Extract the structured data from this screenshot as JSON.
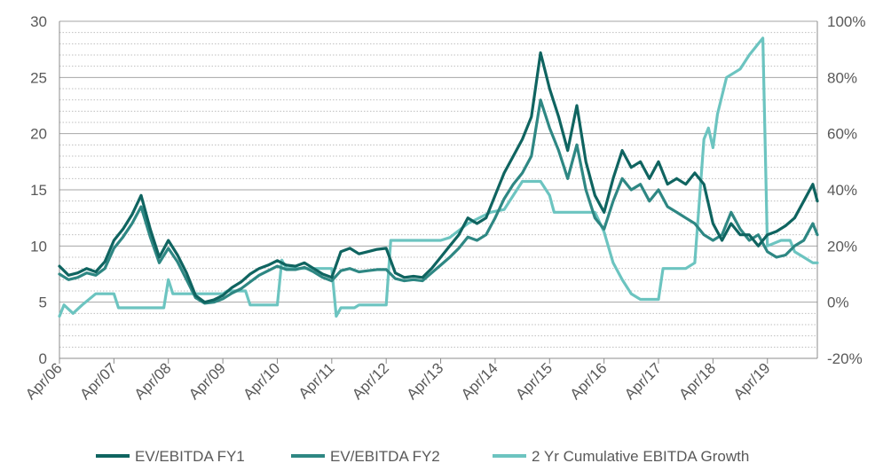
{
  "chart_data": {
    "type": "line",
    "title": "",
    "xlabel": "",
    "ylabel": "",
    "x_ticks": [
      "Apr/06",
      "Apr/07",
      "Apr/08",
      "Apr/09",
      "Apr/10",
      "Apr/11",
      "Apr/12",
      "Apr/13",
      "Apr/14",
      "Apr/15",
      "Apr/16",
      "Apr/17",
      "Apr/18",
      "Apr/19"
    ],
    "y_left": {
      "ticks": [
        "0",
        "5",
        "10",
        "15",
        "20",
        "25",
        "30"
      ],
      "range": [
        0,
        30
      ]
    },
    "y_right": {
      "ticks": [
        "-20%",
        "0%",
        "20%",
        "40%",
        "60%",
        "80%",
        "100%"
      ],
      "range": [
        -20,
        100
      ]
    },
    "grid": "horizontal dotted",
    "legend_position": "bottom",
    "series": [
      {
        "name": "EV/EBITDA FY1",
        "axis": "left",
        "color": "#0f6460",
        "points": [
          [
            "2006-04",
            8.2
          ],
          [
            "2006-06",
            7.4
          ],
          [
            "2006-08",
            7.6
          ],
          [
            "2006-10",
            8.0
          ],
          [
            "2006-12",
            7.7
          ],
          [
            "2007-02",
            8.6
          ],
          [
            "2007-04",
            10.5
          ],
          [
            "2007-06",
            11.5
          ],
          [
            "2007-08",
            12.8
          ],
          [
            "2007-10",
            14.5
          ],
          [
            "2007-12",
            11.5
          ],
          [
            "2008-02",
            9.0
          ],
          [
            "2008-04",
            10.5
          ],
          [
            "2008-06",
            9.2
          ],
          [
            "2008-08",
            7.6
          ],
          [
            "2008-10",
            5.6
          ],
          [
            "2008-12",
            5.0
          ],
          [
            "2009-02",
            5.2
          ],
          [
            "2009-04",
            5.6
          ],
          [
            "2009-06",
            6.3
          ],
          [
            "2009-08",
            6.8
          ],
          [
            "2009-10",
            7.5
          ],
          [
            "2009-12",
            8.0
          ],
          [
            "2010-02",
            8.3
          ],
          [
            "2010-04",
            8.7
          ],
          [
            "2010-06",
            8.3
          ],
          [
            "2010-08",
            8.2
          ],
          [
            "2010-10",
            8.5
          ],
          [
            "2010-12",
            8.0
          ],
          [
            "2011-02",
            7.5
          ],
          [
            "2011-04",
            7.2
          ],
          [
            "2011-06",
            9.5
          ],
          [
            "2011-08",
            9.8
          ],
          [
            "2011-10",
            9.3
          ],
          [
            "2011-12",
            9.5
          ],
          [
            "2012-02",
            9.7
          ],
          [
            "2012-04",
            9.8
          ],
          [
            "2012-06",
            7.6
          ],
          [
            "2012-08",
            7.2
          ],
          [
            "2012-10",
            7.3
          ],
          [
            "2012-12",
            7.2
          ],
          [
            "2013-02",
            8.0
          ],
          [
            "2013-04",
            9.0
          ],
          [
            "2013-06",
            10.0
          ],
          [
            "2013-08",
            11.0
          ],
          [
            "2013-10",
            12.5
          ],
          [
            "2013-12",
            12.0
          ],
          [
            "2014-02",
            12.5
          ],
          [
            "2014-04",
            14.5
          ],
          [
            "2014-06",
            16.5
          ],
          [
            "2014-08",
            18.0
          ],
          [
            "2014-10",
            19.5
          ],
          [
            "2014-12",
            21.5
          ],
          [
            "2015-02",
            27.2
          ],
          [
            "2015-04",
            24.0
          ],
          [
            "2015-06",
            21.5
          ],
          [
            "2015-08",
            18.5
          ],
          [
            "2015-10",
            22.5
          ],
          [
            "2015-12",
            17.5
          ],
          [
            "2016-02",
            14.5
          ],
          [
            "2016-04",
            13.0
          ],
          [
            "2016-06",
            16.0
          ],
          [
            "2016-08",
            18.5
          ],
          [
            "2016-10",
            17.0
          ],
          [
            "2016-12",
            17.5
          ],
          [
            "2017-02",
            16.0
          ],
          [
            "2017-04",
            17.5
          ],
          [
            "2017-06",
            15.5
          ],
          [
            "2017-08",
            16.0
          ],
          [
            "2017-10",
            15.5
          ],
          [
            "2017-12",
            16.5
          ],
          [
            "2018-02",
            15.5
          ],
          [
            "2018-04",
            12.0
          ],
          [
            "2018-06",
            10.5
          ],
          [
            "2018-08",
            12.0
          ],
          [
            "2018-10",
            11.0
          ],
          [
            "2018-12",
            11.0
          ],
          [
            "2019-02",
            10.0
          ],
          [
            "2019-04",
            11.0
          ],
          [
            "2019-06",
            11.3
          ],
          [
            "2019-08",
            11.8
          ],
          [
            "2019-10",
            12.5
          ],
          [
            "2019-12",
            14.0
          ],
          [
            "2020-02",
            15.5
          ],
          [
            "2020-03",
            14.0
          ]
        ]
      },
      {
        "name": "EV/EBITDA FY2",
        "axis": "left",
        "color": "#2e8783",
        "points": [
          [
            "2006-04",
            7.5
          ],
          [
            "2006-06",
            7.0
          ],
          [
            "2006-08",
            7.2
          ],
          [
            "2006-10",
            7.6
          ],
          [
            "2006-12",
            7.4
          ],
          [
            "2007-02",
            8.0
          ],
          [
            "2007-04",
            9.8
          ],
          [
            "2007-06",
            10.8
          ],
          [
            "2007-08",
            12.0
          ],
          [
            "2007-10",
            13.5
          ],
          [
            "2007-12",
            10.8
          ],
          [
            "2008-02",
            8.5
          ],
          [
            "2008-04",
            9.8
          ],
          [
            "2008-06",
            8.6
          ],
          [
            "2008-08",
            7.0
          ],
          [
            "2008-10",
            5.4
          ],
          [
            "2008-12",
            4.9
          ],
          [
            "2009-02",
            5.0
          ],
          [
            "2009-04",
            5.3
          ],
          [
            "2009-06",
            5.8
          ],
          [
            "2009-08",
            6.2
          ],
          [
            "2009-10",
            6.8
          ],
          [
            "2009-12",
            7.4
          ],
          [
            "2010-02",
            7.8
          ],
          [
            "2010-04",
            8.2
          ],
          [
            "2010-06",
            7.9
          ],
          [
            "2010-08",
            7.9
          ],
          [
            "2010-10",
            8.1
          ],
          [
            "2010-12",
            7.7
          ],
          [
            "2011-02",
            7.2
          ],
          [
            "2011-04",
            6.9
          ],
          [
            "2011-06",
            7.8
          ],
          [
            "2011-08",
            8.0
          ],
          [
            "2011-10",
            7.7
          ],
          [
            "2011-12",
            7.8
          ],
          [
            "2012-02",
            7.9
          ],
          [
            "2012-04",
            7.9
          ],
          [
            "2012-06",
            7.1
          ],
          [
            "2012-08",
            6.9
          ],
          [
            "2012-10",
            7.0
          ],
          [
            "2012-12",
            6.9
          ],
          [
            "2013-02",
            7.6
          ],
          [
            "2013-04",
            8.3
          ],
          [
            "2013-06",
            9.0
          ],
          [
            "2013-08",
            9.8
          ],
          [
            "2013-10",
            10.8
          ],
          [
            "2013-12",
            10.5
          ],
          [
            "2014-02",
            11.0
          ],
          [
            "2014-04",
            12.5
          ],
          [
            "2014-06",
            14.2
          ],
          [
            "2014-08",
            15.5
          ],
          [
            "2014-10",
            16.5
          ],
          [
            "2014-12",
            18.0
          ],
          [
            "2015-02",
            23.0
          ],
          [
            "2015-04",
            20.5
          ],
          [
            "2015-06",
            18.5
          ],
          [
            "2015-08",
            16.0
          ],
          [
            "2015-10",
            19.0
          ],
          [
            "2015-12",
            15.0
          ],
          [
            "2016-02",
            12.5
          ],
          [
            "2016-04",
            11.5
          ],
          [
            "2016-06",
            14.0
          ],
          [
            "2016-08",
            16.0
          ],
          [
            "2016-10",
            15.0
          ],
          [
            "2016-12",
            15.5
          ],
          [
            "2017-02",
            14.0
          ],
          [
            "2017-04",
            15.0
          ],
          [
            "2017-06",
            13.5
          ],
          [
            "2017-08",
            13.0
          ],
          [
            "2017-10",
            12.5
          ],
          [
            "2017-12",
            12.0
          ],
          [
            "2018-02",
            11.0
          ],
          [
            "2018-04",
            10.5
          ],
          [
            "2018-06",
            11.0
          ],
          [
            "2018-08",
            13.0
          ],
          [
            "2018-10",
            11.5
          ],
          [
            "2018-12",
            10.5
          ],
          [
            "2019-02",
            11.0
          ],
          [
            "2019-04",
            9.5
          ],
          [
            "2019-06",
            9.0
          ],
          [
            "2019-08",
            9.2
          ],
          [
            "2019-10",
            10.0
          ],
          [
            "2019-12",
            10.5
          ],
          [
            "2020-02",
            12.0
          ],
          [
            "2020-03",
            11.0
          ]
        ]
      },
      {
        "name": "2 Yr Cumulative EBITDA Growth",
        "axis": "right",
        "color": "#6cc4c0",
        "points": [
          [
            "2006-04",
            -5
          ],
          [
            "2006-05",
            -1
          ],
          [
            "2006-07",
            -4
          ],
          [
            "2006-09",
            -1
          ],
          [
            "2006-12",
            3
          ],
          [
            "2007-04",
            3
          ],
          [
            "2007-05",
            -2
          ],
          [
            "2008-03",
            -2
          ],
          [
            "2008-04",
            8
          ],
          [
            "2008-05",
            3
          ],
          [
            "2009-04",
            3
          ],
          [
            "2009-05",
            4
          ],
          [
            "2009-09",
            4
          ],
          [
            "2009-10",
            -1
          ],
          [
            "2010-04",
            -1
          ],
          [
            "2010-05",
            15
          ],
          [
            "2010-06",
            12
          ],
          [
            "2011-04",
            12
          ],
          [
            "2011-05",
            -5
          ],
          [
            "2011-06",
            -2
          ],
          [
            "2011-09",
            -2
          ],
          [
            "2011-10",
            -1
          ],
          [
            "2012-04",
            -1
          ],
          [
            "2012-05",
            22
          ],
          [
            "2013-04",
            22
          ],
          [
            "2013-06",
            23
          ],
          [
            "2013-10",
            28
          ],
          [
            "2014-03",
            32
          ],
          [
            "2014-06",
            33
          ],
          [
            "2014-08",
            38
          ],
          [
            "2014-10",
            43
          ],
          [
            "2015-02",
            43
          ],
          [
            "2015-04",
            38
          ],
          [
            "2015-05",
            32
          ],
          [
            "2016-02",
            32
          ],
          [
            "2016-04",
            25
          ],
          [
            "2016-06",
            14
          ],
          [
            "2016-08",
            8
          ],
          [
            "2016-10",
            3
          ],
          [
            "2016-12",
            1
          ],
          [
            "2017-04",
            1
          ],
          [
            "2017-05",
            12
          ],
          [
            "2017-10",
            12
          ],
          [
            "2017-12",
            14
          ],
          [
            "2018-02",
            58
          ],
          [
            "2018-03",
            62
          ],
          [
            "2018-04",
            55
          ],
          [
            "2018-05",
            67
          ],
          [
            "2018-07",
            80
          ],
          [
            "2018-10",
            83
          ],
          [
            "2018-12",
            88
          ],
          [
            "2019-02",
            92
          ],
          [
            "2019-03",
            94
          ],
          [
            "2019-04",
            20
          ],
          [
            "2019-07",
            22
          ],
          [
            "2019-09",
            22
          ],
          [
            "2019-10",
            18
          ],
          [
            "2019-12",
            16
          ],
          [
            "2020-02",
            14
          ],
          [
            "2020-03",
            14
          ]
        ]
      }
    ]
  }
}
